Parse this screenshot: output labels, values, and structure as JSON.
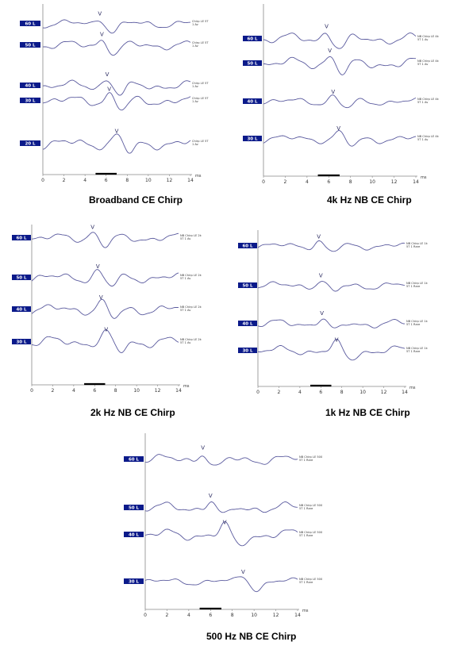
{
  "chart_data": [
    {
      "type": "line",
      "title": "Broadband CE Chirp",
      "xlabel": "ms",
      "xlim": [
        0,
        14
      ],
      "xticks": [
        0,
        2,
        4,
        6,
        8,
        10,
        12,
        14
      ],
      "wave_color": "#5a5a9e",
      "series": [
        {
          "name": "60 L",
          "wave_v_latency_ms": 5.4,
          "trace_label": "Chirp LE 5T 1 Av"
        },
        {
          "name": "50 L",
          "wave_v_latency_ms": 5.6,
          "trace_label": "Chirp LE 5T 1 Av"
        },
        {
          "name": "40 L",
          "wave_v_latency_ms": 6.1,
          "trace_label": "Chirp LE 5T 1 Av"
        },
        {
          "name": "30 L",
          "wave_v_latency_ms": 6.3,
          "trace_label": "Chirp LE 5T 1 Av"
        },
        {
          "name": "20 L",
          "wave_v_latency_ms": 7.0,
          "trace_label": "Chirp LE 5T 1 Av"
        }
      ]
    },
    {
      "type": "line",
      "title": "4k Hz NB CE Chirp",
      "xlabel": "ms",
      "xlim": [
        0,
        14
      ],
      "xticks": [
        0,
        2,
        4,
        6,
        8,
        10,
        12,
        14
      ],
      "wave_color": "#5a5a9e",
      "series": [
        {
          "name": "60 L",
          "wave_v_latency_ms": 5.8,
          "trace_label": "NB Chirp LE 4k 5T 1 Av"
        },
        {
          "name": "50 L",
          "wave_v_latency_ms": 6.1,
          "trace_label": "NB Chirp LE 4k 5T 1 Av"
        },
        {
          "name": "40 L",
          "wave_v_latency_ms": 6.4,
          "trace_label": "NB Chirp LE 4k 5T 1 Av"
        },
        {
          "name": "30 L",
          "wave_v_latency_ms": 6.9,
          "trace_label": "NB Chirp LE 4k 5T 1 Av"
        }
      ]
    },
    {
      "type": "line",
      "title": "2k Hz NB CE Chirp",
      "xlabel": "ms",
      "xlim": [
        0,
        14
      ],
      "xticks": [
        0,
        2,
        4,
        6,
        8,
        10,
        12,
        14
      ],
      "wave_color": "#5a5a9e",
      "series": [
        {
          "name": "60 L",
          "wave_v_latency_ms": 5.8,
          "trace_label": "NB Chirp LE 2k 5T 1 Av"
        },
        {
          "name": "50 L",
          "wave_v_latency_ms": 6.3,
          "trace_label": "NB Chirp LE 2k 5T 1 Av"
        },
        {
          "name": "40 L",
          "wave_v_latency_ms": 6.6,
          "trace_label": "NB Chirp LE 2k 5T 1 Av"
        },
        {
          "name": "30 L",
          "wave_v_latency_ms": 7.1,
          "trace_label": "NB Chirp LE 2k 5T 1 Av"
        }
      ]
    },
    {
      "type": "line",
      "title": "1k Hz NB CE Chirp",
      "xlabel": "ms",
      "xlim": [
        0,
        14
      ],
      "xticks": [
        0,
        2,
        4,
        6,
        8,
        10,
        12,
        14
      ],
      "wave_color": "#5a5a9e",
      "series": [
        {
          "name": "60 L",
          "wave_v_latency_ms": 5.8,
          "trace_label": "NB Chirp LE 1k 5T 1 Rare"
        },
        {
          "name": "50 L",
          "wave_v_latency_ms": 6.0,
          "trace_label": "NB Chirp LE 1k 5T 1 Rare"
        },
        {
          "name": "40 L",
          "wave_v_latency_ms": 6.1,
          "trace_label": "NB Chirp LE 1k 5T 1 Rare"
        },
        {
          "name": "30 L",
          "wave_v_latency_ms": 7.5,
          "trace_label": "NB Chirp LE 1k 5T 1 Rare"
        }
      ]
    },
    {
      "type": "line",
      "title": "500 Hz NB CE Chirp",
      "xlabel": "ms",
      "xlim": [
        0,
        14
      ],
      "xticks": [
        0,
        2,
        4,
        6,
        8,
        10,
        12,
        14
      ],
      "wave_color": "#5a5a9e",
      "series": [
        {
          "name": "60 L",
          "wave_v_latency_ms": 5.3,
          "trace_label": "NB Chirp LE 500 5T 1 Rare"
        },
        {
          "name": "50 L",
          "wave_v_latency_ms": 6.0,
          "trace_label": "NB Chirp LE 500 5T 1 Rare"
        },
        {
          "name": "40 L",
          "wave_v_latency_ms": 7.3,
          "trace_label": "NB Chirp LE 500 5T 1 Rare"
        },
        {
          "name": "30 L",
          "wave_v_latency_ms": 9.0,
          "trace_label": "NB Chirp LE 500 5T 1 Rare"
        }
      ]
    }
  ]
}
